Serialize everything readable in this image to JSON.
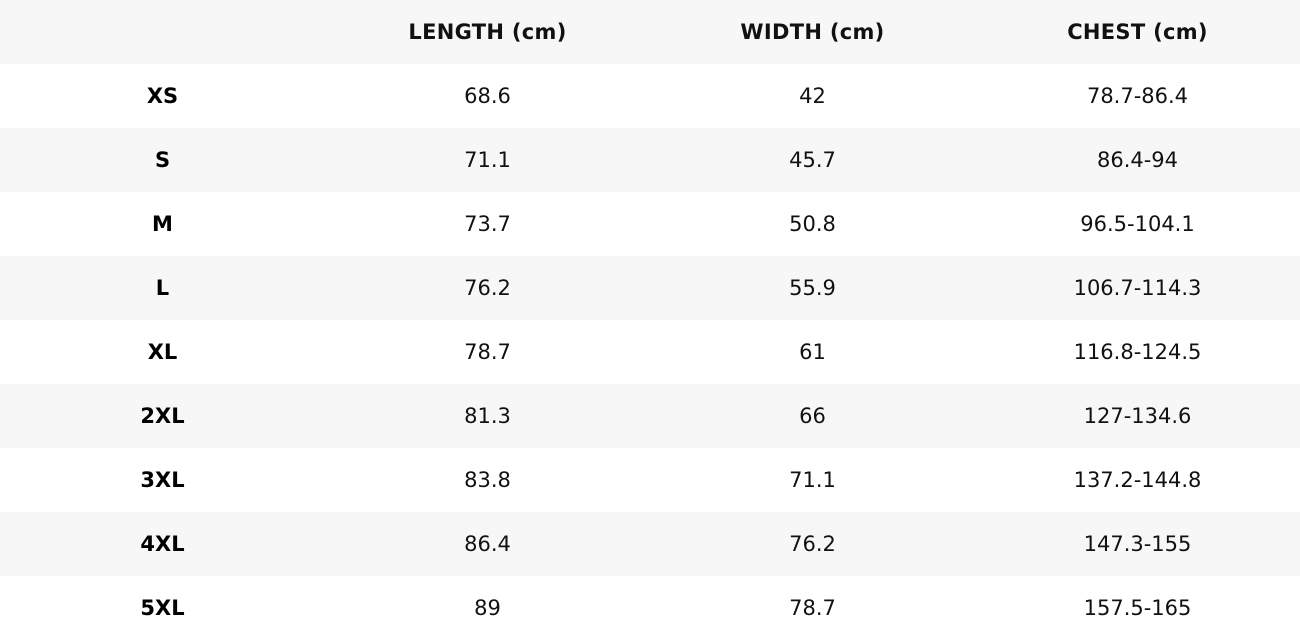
{
  "colors": {
    "stripe": "#f7f7f7",
    "background": "#ffffff",
    "text": "#111111",
    "header_text": "#000000"
  },
  "chart_data": {
    "type": "table",
    "title": "",
    "columns": [
      "",
      "LENGTH (cm)",
      "WIDTH (cm)",
      "CHEST (cm)"
    ],
    "rows": [
      [
        "XS",
        "68.6",
        "42",
        "78.7-86.4"
      ],
      [
        "S",
        "71.1",
        "45.7",
        "86.4-94"
      ],
      [
        "M",
        "73.7",
        "50.8",
        "96.5-104.1"
      ],
      [
        "L",
        "76.2",
        "55.9",
        "106.7-114.3"
      ],
      [
        "XL",
        "78.7",
        "61",
        "116.8-124.5"
      ],
      [
        "2XL",
        "81.3",
        "66",
        "127-134.6"
      ],
      [
        "3XL",
        "83.8",
        "71.1",
        "137.2-144.8"
      ],
      [
        "4XL",
        "86.4",
        "76.2",
        "147.3-155"
      ],
      [
        "5XL",
        "89",
        "78.7",
        "157.5-165"
      ]
    ],
    "layout": {
      "striped": true,
      "stripe_pattern": "header and alternate rows light gray",
      "gridlines": false,
      "column_alignment": "center"
    }
  }
}
